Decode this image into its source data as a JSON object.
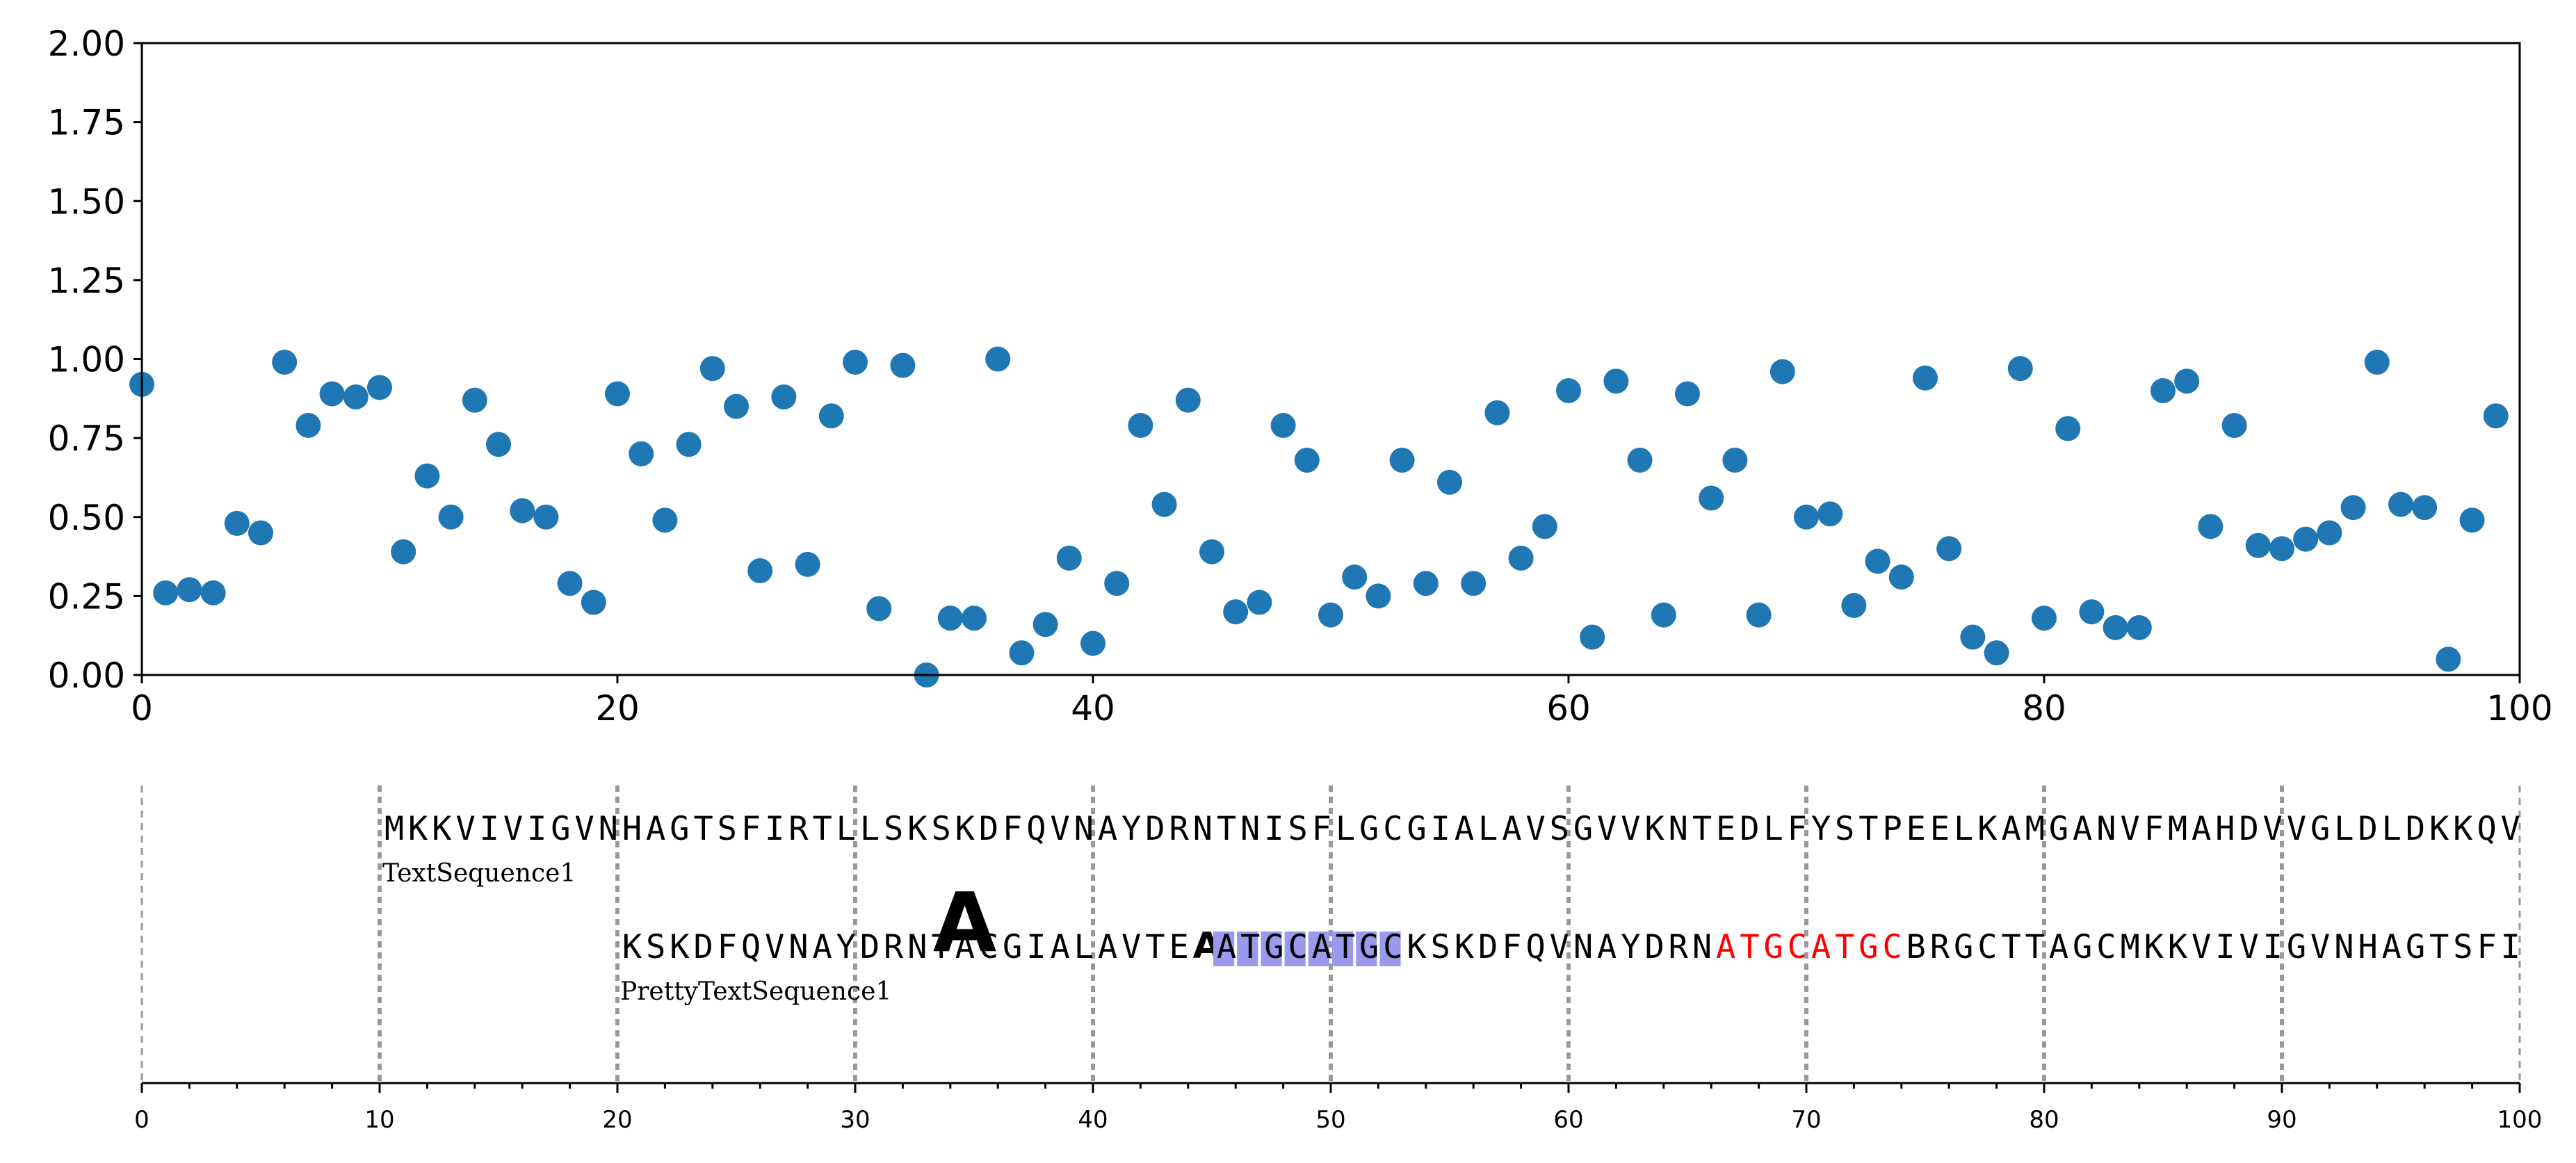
{
  "chart_data": [
    {
      "type": "scatter",
      "title": "",
      "xlabel": "",
      "ylabel": "",
      "xlim": [
        0,
        100
      ],
      "ylim": [
        0,
        2
      ],
      "grid": false,
      "marker_color": "#1f77b4",
      "x_ticks": [
        "0",
        "20",
        "40",
        "60",
        "80",
        "100"
      ],
      "y_ticks": [
        "0.00",
        "0.25",
        "0.50",
        "0.75",
        "1.00",
        "1.25",
        "1.50",
        "1.75",
        "2.00"
      ],
      "x": [
        0,
        1,
        2,
        3,
        4,
        5,
        6,
        7,
        8,
        9,
        10,
        11,
        12,
        13,
        14,
        15,
        16,
        17,
        18,
        19,
        20,
        21,
        22,
        23,
        24,
        25,
        26,
        27,
        28,
        29,
        30,
        31,
        32,
        33,
        34,
        35,
        36,
        37,
        38,
        39,
        40,
        41,
        42,
        43,
        44,
        45,
        46,
        47,
        48,
        49,
        50,
        51,
        52,
        53,
        54,
        55,
        56,
        57,
        58,
        59,
        60,
        61,
        62,
        63,
        64,
        65,
        66,
        67,
        68,
        69,
        70,
        71,
        72,
        73,
        74,
        75,
        76,
        77,
        78,
        79,
        80,
        81,
        82,
        83,
        84,
        85,
        86,
        87,
        88,
        89,
        90,
        91,
        92,
        93,
        94,
        95,
        96,
        97,
        98,
        99
      ],
      "y": [
        0.92,
        0.26,
        0.27,
        0.26,
        0.48,
        0.45,
        0.99,
        0.79,
        0.89,
        0.88,
        0.91,
        0.39,
        0.63,
        0.5,
        0.87,
        0.73,
        0.52,
        0.5,
        0.29,
        0.23,
        0.89,
        0.7,
        0.49,
        0.73,
        0.97,
        0.85,
        0.33,
        0.88,
        0.35,
        0.82,
        0.99,
        0.21,
        0.98,
        0.0,
        0.18,
        0.18,
        1.0,
        0.07,
        0.16,
        0.37,
        0.1,
        0.29,
        0.79,
        0.54,
        0.87,
        0.39,
        0.2,
        0.23,
        0.79,
        0.68,
        0.19,
        0.31,
        0.25,
        0.68,
        0.29,
        0.61,
        0.29,
        0.83,
        0.37,
        0.47,
        0.9,
        0.12,
        0.93,
        0.68,
        0.19,
        0.89,
        0.56,
        0.68,
        0.19,
        0.96,
        0.5,
        0.51,
        0.22,
        0.36,
        0.31,
        0.94,
        0.4,
        0.12,
        0.07,
        0.97,
        0.18,
        0.78,
        0.2,
        0.15,
        0.15,
        0.9,
        0.93,
        0.47,
        0.79,
        0.41,
        0.4,
        0.43,
        0.45,
        0.53,
        0.99,
        0.54,
        0.53,
        0.05,
        0.49,
        0.82
      ]
    },
    {
      "type": "sequence-track",
      "xlim": [
        0,
        100
      ],
      "x_ticks": [
        "0",
        "10",
        "20",
        "30",
        "40",
        "50",
        "60",
        "70",
        "80",
        "90",
        "100"
      ],
      "gridline_positions": [
        0,
        10,
        20,
        30,
        40,
        50,
        60,
        70,
        80,
        90,
        100
      ],
      "sequences": [
        {
          "name": "TextSequence1",
          "start": 10,
          "text": "MKKVIVIGVNHAGTSFIRTLLSKSKDFQVNAYDRNTNISFLGCGIALAVSGVVKNTEDLFYSTPEELKAMGANVFMAHDVVGLDLDKKQVI"
        },
        {
          "name": "PrettyTextSequence1",
          "start": 20,
          "segments": [
            {
              "text": "KSKDFQVNAYDRN",
              "style": "plain"
            },
            {
              "text": "T",
              "style": "plain"
            },
            {
              "text": "A",
              "style": "big-bold"
            },
            {
              "text": "ACGIALAVTE",
              "style": "plain"
            },
            {
              "text": "A",
              "style": "bold"
            },
            {
              "text": "ATGCATGC",
              "style": "highlight"
            },
            {
              "text": "KSKDFQVNAYDRN",
              "style": "plain"
            },
            {
              "text": "ATGCATGC",
              "style": "red"
            },
            {
              "text": "BRGCTTAGCMKKVIVIGVNHAGTSFIR",
              "style": "plain"
            }
          ],
          "highlight_color": "#9999ee",
          "red_color": "#ff0000"
        }
      ]
    }
  ]
}
